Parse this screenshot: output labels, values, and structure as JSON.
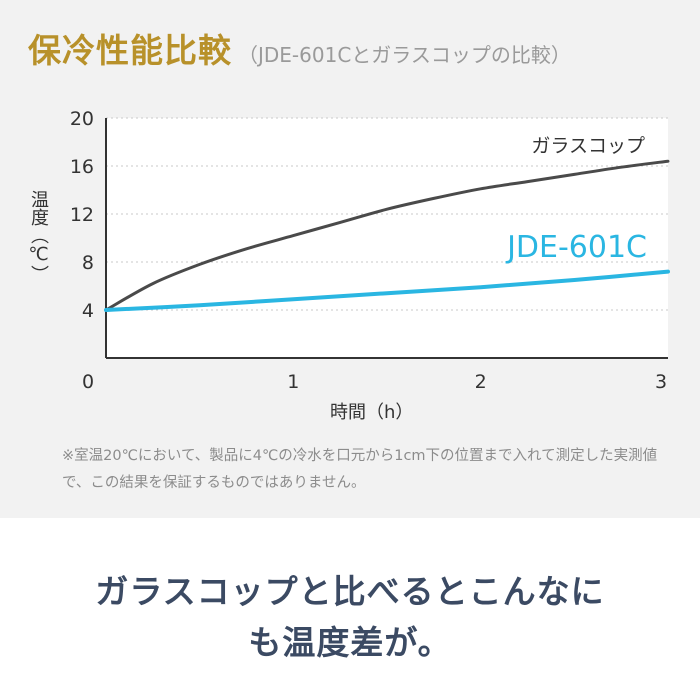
{
  "title": "保冷性能比較",
  "subtitle": "（JDE-601Cとガラスコップの比較）",
  "note": "※室温20℃において、製品に4℃の冷水を口元から1cm下の位置まで入れて測定した実測値で、この結果を保証するものではありません。",
  "message": {
    "line1": "ガラスコップと比べるとこんなに",
    "line2": "も温度差が。"
  },
  "chart_data": {
    "type": "line",
    "xlabel": "時間（h）",
    "ylabel": "温度（℃）",
    "xlim": [
      0,
      3
    ],
    "ylim": [
      0,
      20
    ],
    "x_ticks": [
      0,
      1,
      2,
      3
    ],
    "y_ticks": [
      4,
      8,
      12,
      16,
      20
    ],
    "grid": true,
    "series": [
      {
        "name": "ガラスコップ",
        "color": "#4a4a4a",
        "x": [
          0,
          0.25,
          0.5,
          0.75,
          1,
          1.25,
          1.5,
          1.75,
          2,
          2.25,
          2.5,
          2.75,
          3
        ],
        "y": [
          4,
          6.2,
          7.8,
          9.1,
          10.2,
          11.3,
          12.4,
          13.3,
          14.1,
          14.7,
          15.3,
          15.9,
          16.4
        ]
      },
      {
        "name": "JDE-601C",
        "color": "#2ab6e2",
        "x": [
          0,
          0.5,
          1,
          1.5,
          2,
          2.5,
          3
        ],
        "y": [
          4,
          4.4,
          4.9,
          5.4,
          5.9,
          6.5,
          7.2
        ]
      }
    ]
  }
}
